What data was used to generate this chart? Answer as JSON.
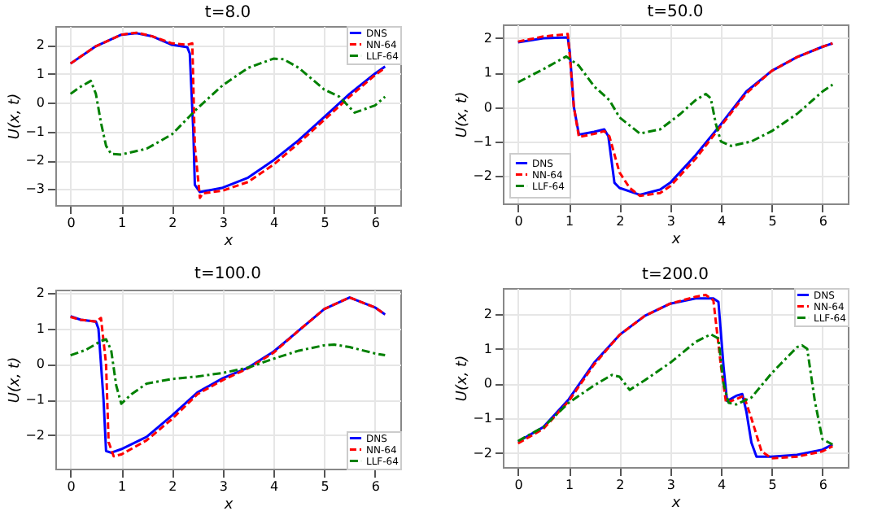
{
  "chart_data": [
    {
      "type": "line",
      "title": "t=8.0",
      "xlabel": "x",
      "ylabel": "U(x, t)",
      "xlim": [
        -0.3,
        6.5
      ],
      "xticks": [
        0,
        1,
        2,
        3,
        4,
        5,
        6
      ],
      "ylim": [
        -3.55,
        2.65
      ],
      "yticks": [
        -3,
        -2,
        -1,
        0,
        1,
        2
      ],
      "grid": true,
      "legend": "top right",
      "series": [
        {
          "name": "DNS",
          "color": "#0000ff",
          "line_style": "solid",
          "x": [
            0,
            0.5,
            1,
            1.3,
            1.6,
            2,
            2.3,
            2.35,
            2.42,
            2.45,
            2.55,
            3,
            3.5,
            4,
            4.5,
            5,
            5.5,
            6,
            6.2
          ],
          "values": [
            1.35,
            1.95,
            2.35,
            2.4,
            2.3,
            2.0,
            1.92,
            1.7,
            -1.0,
            -2.85,
            -3.1,
            -2.95,
            -2.6,
            -2.0,
            -1.3,
            -0.5,
            0.3,
            1.0,
            1.25
          ]
        },
        {
          "name": "NN-64",
          "color": "#ff0000",
          "line_style": "dashed",
          "x": [
            0,
            0.5,
            1,
            1.3,
            1.6,
            2,
            2.3,
            2.4,
            2.45,
            2.55,
            2.6,
            3,
            3.5,
            4,
            4.5,
            5,
            5.5,
            6,
            6.2
          ],
          "values": [
            1.35,
            1.95,
            2.35,
            2.42,
            2.3,
            2.05,
            2.0,
            2.05,
            -1.5,
            -3.3,
            -3.15,
            -3.05,
            -2.75,
            -2.15,
            -1.4,
            -0.6,
            0.2,
            0.95,
            1.2
          ]
        },
        {
          "name": "LLF-64",
          "color": "#008000",
          "line_style": "dashdot",
          "x": [
            0,
            0.2,
            0.4,
            0.5,
            0.6,
            0.7,
            0.8,
            1.0,
            1.5,
            2,
            2.5,
            3,
            3.5,
            4,
            4.2,
            4.5,
            5,
            5.3,
            5.6,
            6,
            6.2
          ],
          "values": [
            0.3,
            0.55,
            0.75,
            0.3,
            -0.7,
            -1.5,
            -1.78,
            -1.8,
            -1.6,
            -1.1,
            -0.2,
            0.6,
            1.2,
            1.52,
            1.5,
            1.2,
            0.45,
            0.2,
            -0.35,
            -0.1,
            0.2
          ]
        }
      ]
    },
    {
      "type": "line",
      "title": "t=50.0",
      "xlabel": "x",
      "ylabel": "U(x, t)",
      "xlim": [
        -0.3,
        6.5
      ],
      "xticks": [
        0,
        1,
        2,
        3,
        4,
        5,
        6
      ],
      "ylim": [
        -2.8,
        2.4
      ],
      "yticks": [
        -2,
        -1,
        0,
        1,
        2
      ],
      "grid": true,
      "legend": "bottom left",
      "series": [
        {
          "name": "DNS",
          "color": "#0000ff",
          "line_style": "solid",
          "x": [
            0,
            0.5,
            0.98,
            1.02,
            1.1,
            1.2,
            1.5,
            1.7,
            1.78,
            1.9,
            2.0,
            2.4,
            2.8,
            3.0,
            3.5,
            4.0,
            4.5,
            5,
            5.5,
            6,
            6.2
          ],
          "values": [
            1.88,
            2.0,
            2.02,
            1.6,
            0.0,
            -0.8,
            -0.72,
            -0.65,
            -0.85,
            -2.2,
            -2.35,
            -2.55,
            -2.4,
            -2.2,
            -1.4,
            -0.5,
            0.45,
            1.05,
            1.45,
            1.75,
            1.85
          ]
        },
        {
          "name": "NN-64",
          "color": "#ff0000",
          "line_style": "dashed",
          "x": [
            0,
            0.5,
            0.98,
            1.02,
            1.1,
            1.2,
            1.5,
            1.7,
            1.8,
            2.0,
            2.2,
            2.4,
            2.8,
            3.0,
            3.5,
            4,
            4.5,
            5,
            5.5,
            6,
            6.2
          ],
          "values": [
            1.9,
            2.05,
            2.12,
            1.5,
            0.0,
            -0.87,
            -0.78,
            -0.7,
            -0.85,
            -1.9,
            -2.35,
            -2.58,
            -2.5,
            -2.3,
            -1.5,
            -0.55,
            0.4,
            1.05,
            1.45,
            1.75,
            1.85
          ]
        },
        {
          "name": "LLF-64",
          "color": "#008000",
          "line_style": "dashdot",
          "x": [
            0,
            0.5,
            0.95,
            1.2,
            1.5,
            1.8,
            2,
            2.4,
            2.8,
            3.2,
            3.5,
            3.7,
            3.8,
            3.9,
            4.0,
            4.2,
            4.6,
            5,
            5.5,
            6,
            6.2
          ],
          "values": [
            0.72,
            1.1,
            1.47,
            1.2,
            0.6,
            0.2,
            -0.3,
            -0.77,
            -0.65,
            -0.2,
            0.2,
            0.38,
            0.25,
            -0.5,
            -1.0,
            -1.13,
            -1.0,
            -0.7,
            -0.2,
            0.45,
            0.65
          ]
        }
      ]
    },
    {
      "type": "line",
      "title": "t=100.0",
      "xlabel": "x",
      "ylabel": "U(x, t)",
      "xlim": [
        -0.3,
        6.5
      ],
      "xticks": [
        0,
        1,
        2,
        3,
        4,
        5,
        6
      ],
      "ylim": [
        -2.95,
        2.1
      ],
      "yticks": [
        -2,
        -1,
        0,
        1,
        2
      ],
      "grid": true,
      "legend": "bottom right",
      "series": [
        {
          "name": "DNS",
          "color": "#0000ff",
          "line_style": "solid",
          "x": [
            0,
            0.2,
            0.5,
            0.55,
            0.65,
            0.7,
            0.8,
            1.0,
            1.5,
            2,
            2.5,
            3,
            3.5,
            4,
            4.5,
            5,
            5.5,
            6,
            6.2
          ],
          "values": [
            1.35,
            1.25,
            1.2,
            1.0,
            -1.0,
            -2.45,
            -2.5,
            -2.4,
            -2.05,
            -1.45,
            -0.8,
            -0.4,
            -0.1,
            0.35,
            0.95,
            1.55,
            1.88,
            1.6,
            1.4
          ]
        },
        {
          "name": "NN-64",
          "color": "#ff0000",
          "line_style": "dashed",
          "x": [
            0,
            0.2,
            0.5,
            0.6,
            0.7,
            0.75,
            0.85,
            1.0,
            1.5,
            2,
            2.5,
            3,
            3.5,
            4,
            4.5,
            5,
            5.5,
            6,
            6.2
          ],
          "values": [
            1.33,
            1.25,
            1.2,
            1.3,
            0.0,
            -2.2,
            -2.6,
            -2.55,
            -2.15,
            -1.55,
            -0.85,
            -0.45,
            -0.12,
            0.32,
            0.95,
            1.55,
            1.88,
            1.6,
            1.4
          ]
        },
        {
          "name": "LLF-64",
          "color": "#008000",
          "line_style": "dashdot",
          "x": [
            0,
            0.3,
            0.6,
            0.7,
            0.8,
            0.9,
            1.0,
            1.2,
            1.5,
            2,
            2.5,
            3,
            3.5,
            4,
            4.5,
            5,
            5.2,
            5.5,
            6,
            6.2
          ],
          "values": [
            0.25,
            0.4,
            0.65,
            0.7,
            0.4,
            -0.6,
            -1.12,
            -0.85,
            -0.55,
            -0.42,
            -0.35,
            -0.25,
            -0.1,
            0.15,
            0.38,
            0.53,
            0.55,
            0.48,
            0.3,
            0.25
          ]
        }
      ]
    },
    {
      "type": "line",
      "title": "t=200.0",
      "xlabel": "x",
      "ylabel": "U(x, t)",
      "xlim": [
        -0.3,
        6.5
      ],
      "xticks": [
        0,
        1,
        2,
        3,
        4,
        5,
        6
      ],
      "ylim": [
        -2.4,
        2.75
      ],
      "yticks": [
        -2,
        -1,
        0,
        1,
        2
      ],
      "grid": true,
      "legend": "top right",
      "series": [
        {
          "name": "DNS",
          "color": "#0000ff",
          "line_style": "solid",
          "x": [
            0,
            0.5,
            1,
            1.5,
            2,
            2.5,
            3,
            3.5,
            3.85,
            3.95,
            4.05,
            4.12,
            4.3,
            4.42,
            4.5,
            4.6,
            4.7,
            5,
            5.5,
            6,
            6.2
          ],
          "values": [
            -1.67,
            -1.25,
            -0.45,
            0.6,
            1.4,
            1.95,
            2.3,
            2.45,
            2.45,
            2.35,
            0.5,
            -0.5,
            -0.35,
            -0.3,
            -0.8,
            -1.7,
            -2.1,
            -2.1,
            -2.05,
            -1.9,
            -1.75
          ]
        },
        {
          "name": "NN-64",
          "color": "#ff0000",
          "line_style": "dashed",
          "x": [
            0,
            0.5,
            1,
            1.5,
            2,
            2.5,
            3,
            3.5,
            3.7,
            3.85,
            4.0,
            4.1,
            4.3,
            4.45,
            4.6,
            4.8,
            5,
            5.5,
            6,
            6.2
          ],
          "values": [
            -1.72,
            -1.3,
            -0.5,
            0.55,
            1.4,
            1.95,
            2.3,
            2.5,
            2.55,
            2.4,
            0.5,
            -0.55,
            -0.45,
            -0.35,
            -1.0,
            -1.95,
            -2.15,
            -2.1,
            -1.95,
            -1.8
          ]
        },
        {
          "name": "LLF-64",
          "color": "#008000",
          "line_style": "dashdot",
          "x": [
            0,
            0.5,
            1,
            1.5,
            1.85,
            2,
            2.2,
            2.5,
            3,
            3.5,
            3.8,
            3.95,
            4.05,
            4.15,
            4.3,
            4.6,
            5,
            5.5,
            5.6,
            5.7,
            5.85,
            6.0,
            6.2
          ],
          "values": [
            -1.65,
            -1.25,
            -0.55,
            -0.05,
            0.25,
            0.2,
            -0.18,
            0.1,
            0.6,
            1.2,
            1.42,
            1.3,
            0.0,
            -0.55,
            -0.6,
            -0.4,
            0.3,
            1.05,
            1.1,
            1.0,
            -0.5,
            -1.6,
            -1.75
          ]
        }
      ]
    }
  ]
}
